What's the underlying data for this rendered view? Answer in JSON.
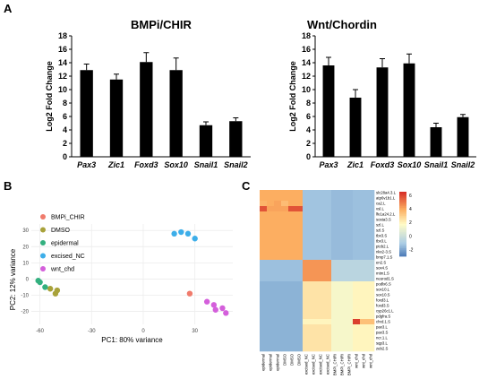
{
  "panels": {
    "a": "A",
    "b": "B",
    "c": "C"
  },
  "chart_data": [
    {
      "type": "bar",
      "title": "BMPi/CHIR",
      "ylabel": "Log2 Fold Change",
      "categories": [
        "Pax3",
        "Zic1",
        "Foxd3",
        "Sox10",
        "Snail1",
        "Snail2"
      ],
      "values": [
        12.9,
        11.5,
        14.1,
        12.9,
        4.7,
        5.3
      ],
      "errors": [
        0.9,
        0.8,
        1.4,
        1.8,
        0.5,
        0.5
      ],
      "ylim": [
        0,
        18
      ],
      "yticks": [
        0,
        2,
        4,
        6,
        8,
        10,
        12,
        14,
        16,
        18
      ],
      "color": "#000000"
    },
    {
      "type": "bar",
      "title": "Wnt/Chordin",
      "ylabel": "Log2 Fold Change",
      "categories": [
        "Pax3",
        "Zic1",
        "Foxd3",
        "Sox10",
        "Snail1",
        "Snail2"
      ],
      "values": [
        13.6,
        8.8,
        13.3,
        13.9,
        4.4,
        5.9
      ],
      "errors": [
        1.2,
        1.2,
        1.3,
        1.4,
        0.6,
        0.4
      ],
      "ylim": [
        0,
        18
      ],
      "yticks": [
        0,
        2,
        4,
        6,
        8,
        10,
        12,
        14,
        16,
        18
      ],
      "color": "#000000"
    },
    {
      "type": "scatter",
      "xlabel": "PC1: 80% variance",
      "ylabel": "PC2: 12% variance",
      "xlim": [
        -65,
        52
      ],
      "ylim": [
        -28,
        34
      ],
      "xticks": [
        -60,
        -30,
        0,
        30
      ],
      "yticks": [
        -20,
        -10,
        0,
        10,
        20,
        30
      ],
      "grid": true,
      "legend": "top-left",
      "series": [
        {
          "name": "BMPi_CHIR",
          "color": "#F07B6C",
          "points": [
            [
              27,
              -9
            ]
          ]
        },
        {
          "name": "DMSO",
          "color": "#A8A23A",
          "points": [
            [
              -54,
              -6
            ],
            [
              -50,
              -7
            ],
            [
              -51,
              -9
            ]
          ]
        },
        {
          "name": "epidermal",
          "color": "#33B07F",
          "points": [
            [
              -61,
              -1
            ],
            [
              -60,
              -2
            ],
            [
              -57,
              -5
            ]
          ]
        },
        {
          "name": "excised_NC",
          "color": "#3DAEE9",
          "points": [
            [
              18,
              28
            ],
            [
              22,
              29
            ],
            [
              26,
              28
            ],
            [
              30,
              25
            ]
          ]
        },
        {
          "name": "wnt_chd",
          "color": "#D45FDB",
          "points": [
            [
              37,
              -14
            ],
            [
              41,
              -16
            ],
            [
              42,
              -19
            ],
            [
              46,
              -18
            ],
            [
              48,
              -21
            ]
          ]
        }
      ]
    },
    {
      "type": "heatmap",
      "rows": [
        "slc28a4.3.L",
        "atp6v1b1.L",
        "ca2.L",
        "vsl.L",
        "lfe1a24.2.L",
        "sosta3.S",
        "szl.L",
        "szl.S",
        "tbx3.S",
        "tbx3.L",
        "ptcb2.L",
        "nkx2-3.S",
        "bmp7.1.S",
        "en2.S",
        "sox4.S",
        "mtm1.S",
        "neurod1.S",
        "podlx6.S",
        "sox10.L",
        "sox10.S",
        "foxd3.L",
        "foxd3.S",
        "cyp26c1.L",
        "pdgfra.S",
        "chrd.1.S",
        "pax3.L",
        "pax3.S",
        "ncr.1.L",
        "sqp3.L",
        "zeb2.S"
      ],
      "columns": [
        "epidermal",
        "epidermal",
        "epidermal",
        "DMSO",
        "DMSO",
        "DMSO",
        "excised_NC",
        "excised_NC",
        "excised_NC",
        "excised_NC",
        "BMPi_CHIRi",
        "BMPi_CHIRi",
        "BMPi_CHIRi",
        "wnt_chd",
        "wnt_chd",
        "wnt_chd"
      ],
      "scale_ticks": [
        6,
        4,
        2,
        0,
        -2
      ],
      "scale_range": [
        -3,
        6.5
      ],
      "values": [
        [
          4,
          4,
          4,
          4,
          4,
          4,
          -1.2,
          -1.2,
          -1.2,
          -1.2,
          -1.4,
          -1.4,
          -1.4,
          -1.3,
          -1.3,
          -1.3
        ],
        [
          4,
          4,
          4,
          4,
          4,
          4,
          -1.2,
          -1.2,
          -1.2,
          -1.2,
          -1.4,
          -1.4,
          -1.4,
          -1.3,
          -1.3,
          -1.3
        ],
        [
          3.8,
          4,
          4.2,
          3.6,
          4,
          4,
          -1.2,
          -1.2,
          -1.2,
          -1.2,
          -1.4,
          -1.4,
          -1.4,
          -1.3,
          -1.3,
          -1.3
        ],
        [
          5.8,
          4.2,
          4.2,
          4.2,
          5.8,
          5.8,
          -1.2,
          -1.2,
          -1.2,
          -1.2,
          -1.4,
          -1.4,
          -1.4,
          -1.3,
          -1.3,
          -1.3
        ],
        [
          4,
          4,
          4,
          4,
          4,
          4,
          -1.2,
          -1.2,
          -1.2,
          -1.2,
          -1.4,
          -1.4,
          -1.4,
          -1.3,
          -1.3,
          -1.3
        ],
        [
          4,
          4,
          4,
          4,
          4,
          4,
          -1.2,
          -1.2,
          -1.2,
          -1.2,
          -1.4,
          -1.4,
          -1.4,
          -1.3,
          -1.3,
          -1.3
        ],
        [
          4,
          4,
          4,
          4,
          4,
          4,
          -1.2,
          -1.2,
          -1.2,
          -1.2,
          -1.4,
          -1.4,
          -1.4,
          -1.3,
          -1.3,
          -1.3
        ],
        [
          4,
          4,
          4,
          4,
          4,
          4,
          -1.2,
          -1.2,
          -1.2,
          -1.2,
          -1.4,
          -1.4,
          -1.4,
          -1.3,
          -1.3,
          -1.3
        ],
        [
          4,
          4,
          4,
          4,
          4,
          4,
          -1.2,
          -1.2,
          -1.2,
          -1.2,
          -1.4,
          -1.4,
          -1.4,
          -1.3,
          -1.3,
          -1.3
        ],
        [
          4,
          4,
          4,
          4,
          4,
          4,
          -1.2,
          -1.2,
          -1.2,
          -1.2,
          -1.4,
          -1.4,
          -1.4,
          -1.3,
          -1.3,
          -1.3
        ],
        [
          4,
          4,
          4,
          4,
          4,
          4,
          -1.2,
          -1.2,
          -1.2,
          -1.2,
          -1.4,
          -1.4,
          -1.4,
          -1.3,
          -1.3,
          -1.3
        ],
        [
          4,
          4,
          4,
          4,
          4,
          4,
          -1.2,
          -1.2,
          -1.2,
          -1.2,
          -1.4,
          -1.4,
          -1.4,
          -1.3,
          -1.3,
          -1.3
        ],
        [
          4,
          4,
          4,
          4,
          4,
          4,
          -1.2,
          -1.2,
          -1.2,
          -1.2,
          -1.4,
          -1.4,
          -1.4,
          -1.3,
          -1.3,
          -1.3
        ],
        [
          -1.3,
          -1.3,
          -1.3,
          -1.3,
          -1.3,
          -1.3,
          4.5,
          4.5,
          4.5,
          4.5,
          -0.5,
          -0.5,
          -0.5,
          -0.5,
          -0.5,
          -0.5
        ],
        [
          -1.3,
          -1.3,
          -1.3,
          -1.3,
          -1.3,
          -1.3,
          4.5,
          4.5,
          4.5,
          4.5,
          -0.5,
          -0.5,
          -0.5,
          -0.5,
          -0.5,
          -0.5
        ],
        [
          -1.3,
          -1.3,
          -1.3,
          -1.3,
          -1.3,
          -1.3,
          4.5,
          4.5,
          4.5,
          4.5,
          -0.5,
          -0.5,
          -0.5,
          -0.5,
          -0.5,
          -0.5
        ],
        [
          -1.3,
          -1.3,
          -1.3,
          -1.3,
          -1.3,
          -1.3,
          4.5,
          4.5,
          4.5,
          4.5,
          -0.5,
          -0.5,
          -0.5,
          -0.5,
          -0.5,
          -0.5
        ],
        [
          -1.6,
          -1.6,
          -1.6,
          -1.6,
          -1.6,
          -1.6,
          2.5,
          2.5,
          2.5,
          2.5,
          1.5,
          1.5,
          1.5,
          2,
          2,
          2
        ],
        [
          -1.6,
          -1.6,
          -1.6,
          -1.6,
          -1.6,
          -1.6,
          2.5,
          2.5,
          2.5,
          2.5,
          1.5,
          1.5,
          1.5,
          2,
          2,
          2
        ],
        [
          -1.6,
          -1.6,
          -1.6,
          -1.6,
          -1.6,
          -1.6,
          2.5,
          2.5,
          2.5,
          2.5,
          1.5,
          1.5,
          1.5,
          2,
          2,
          2
        ],
        [
          -1.6,
          -1.6,
          -1.6,
          -1.6,
          -1.6,
          -1.6,
          2.5,
          2.5,
          2.5,
          2.5,
          1.5,
          1.5,
          1.5,
          2,
          2,
          2
        ],
        [
          -1.6,
          -1.6,
          -1.6,
          -1.6,
          -1.6,
          -1.6,
          2.5,
          2.5,
          2.5,
          2.5,
          1.5,
          1.5,
          1.5,
          2,
          2,
          2
        ],
        [
          -1.6,
          -1.6,
          -1.6,
          -1.6,
          -1.6,
          -1.6,
          2.5,
          2.5,
          2.5,
          2.5,
          1.5,
          1.5,
          1.5,
          2,
          2,
          2
        ],
        [
          -1.6,
          -1.6,
          -1.6,
          -1.6,
          -1.6,
          -1.6,
          2.5,
          2.5,
          2.5,
          2.5,
          1.5,
          1.5,
          1.5,
          2,
          2,
          2
        ],
        [
          -1.6,
          -1.6,
          -1.6,
          -1.6,
          -1.6,
          -1.6,
          2,
          2,
          2,
          2,
          1.5,
          1.5,
          1.5,
          6.2,
          3.5,
          3.5
        ],
        [
          -1.6,
          -1.6,
          -1.6,
          -1.6,
          -1.6,
          -1.6,
          2.5,
          2.5,
          2.5,
          2.5,
          1.5,
          1.5,
          1.5,
          2,
          2,
          2
        ],
        [
          -1.6,
          -1.6,
          -1.6,
          -1.6,
          -1.6,
          -1.6,
          2.5,
          2.5,
          2.5,
          2.5,
          1.5,
          1.5,
          1.5,
          2,
          2,
          2
        ],
        [
          -1.6,
          -1.6,
          -1.6,
          -1.6,
          -1.6,
          -1.6,
          2.5,
          2.5,
          2.5,
          2.5,
          1.5,
          1.5,
          1.5,
          2,
          2,
          2
        ],
        [
          -1.6,
          -1.6,
          -1.6,
          -1.6,
          -1.6,
          -1.6,
          2.5,
          2.5,
          2.5,
          2.5,
          1.5,
          1.5,
          1.5,
          2,
          2,
          2
        ],
        [
          -1.6,
          -1.6,
          -1.6,
          -1.6,
          -1.6,
          -1.6,
          2.5,
          2.5,
          2.5,
          2.5,
          1.5,
          1.5,
          1.5,
          2,
          2,
          2
        ]
      ]
    }
  ]
}
